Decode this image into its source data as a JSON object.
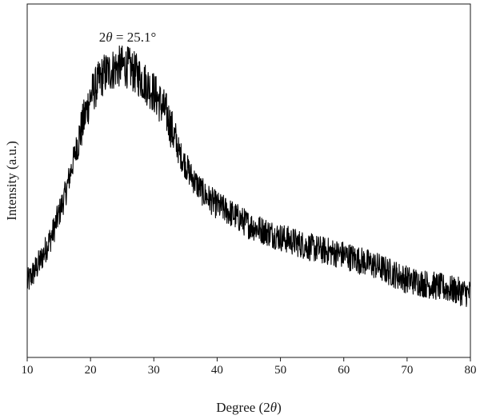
{
  "chart_data": {
    "type": "line",
    "xlabel_prefix": "Degree (2",
    "xlabel_var": "θ",
    "xlabel_suffix": ")",
    "ylabel": "Intensity (a.u.)",
    "xlim": [
      10,
      80
    ],
    "ylim": [
      0,
      100
    ],
    "x_ticks": [
      "10",
      "20",
      "30",
      "40",
      "50",
      "60",
      "70",
      "80"
    ],
    "show_y_ticks": false,
    "grid": false,
    "line_color": "#000000",
    "annotation": {
      "prefix": "2",
      "var": "θ",
      "suffix": " = 25.1°",
      "x": 25.1
    },
    "series": [
      {
        "x": [
          10,
          12,
          14,
          16,
          18,
          20,
          22,
          24,
          25.1,
          26,
          28,
          30,
          32,
          34,
          36,
          38,
          40,
          42,
          45,
          50,
          55,
          60,
          65,
          70,
          75,
          80
        ],
        "values": [
          21,
          27,
          35,
          46,
          61,
          74,
          80,
          82,
          82.5,
          82,
          79,
          75,
          69,
          58,
          51,
          46,
          43,
          41,
          37.5,
          34,
          31,
          29,
          26,
          22,
          20,
          18
        ]
      }
    ],
    "noise_amplitude": 4
  }
}
